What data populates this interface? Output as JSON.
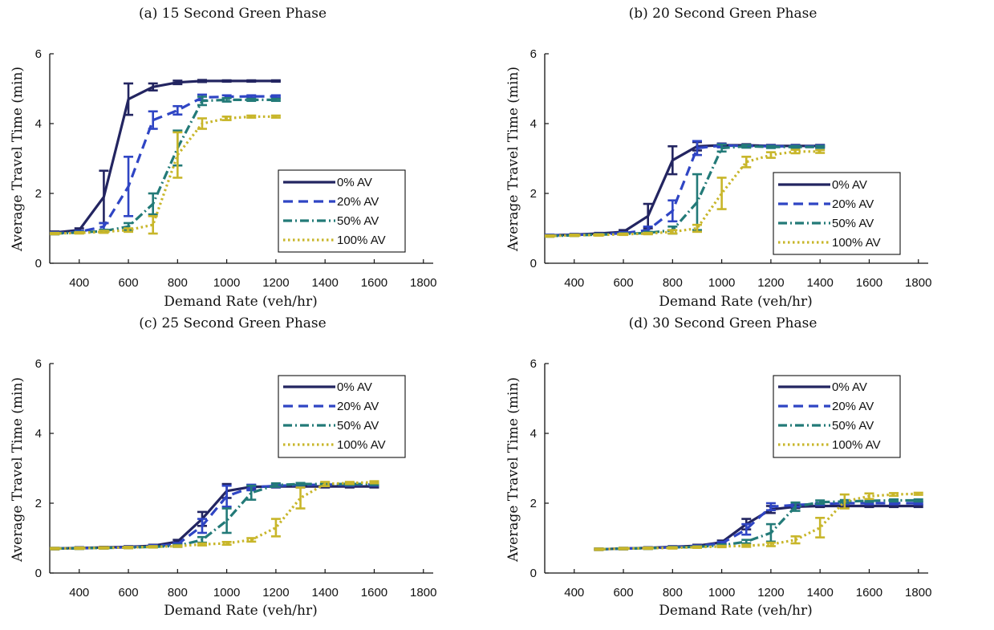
{
  "figure": {
    "colors": {
      "0% AV": "#232561",
      "20% AV": "#2f45c4",
      "50% AV": "#237a78",
      "100% AV": "#c8b62a"
    },
    "line_styles": {
      "0% AV": "solid",
      "20% AV": "dashed",
      "50% AV": "dash-dot",
      "100% AV": "dotted"
    }
  },
  "chart_data": [
    {
      "type": "line",
      "title": "(a) 15 Second Green Phase",
      "xlabel": "Demand Rate (veh/hr)",
      "ylabel": "Average Travel Time (min)",
      "xlim": [
        280,
        1840
      ],
      "ylim": [
        0,
        6
      ],
      "xticks": [
        400,
        600,
        800,
        1000,
        1200,
        1400,
        1600,
        1800
      ],
      "yticks": [
        0,
        2,
        4,
        6
      ],
      "grid": false,
      "legend_position": "center-right",
      "series": [
        {
          "name": "0% AV",
          "x": [
            300,
            400,
            500,
            600,
            700,
            800,
            900,
            1000,
            1100,
            1200
          ],
          "y": [
            0.88,
            0.95,
            1.9,
            4.7,
            5.05,
            5.18,
            5.22,
            5.22,
            5.22,
            5.22
          ],
          "err": [
            0.03,
            0.05,
            0.75,
            0.45,
            0.1,
            0.05,
            0.03,
            0.02,
            0.02,
            0.02
          ]
        },
        {
          "name": "20% AV",
          "x": [
            300,
            400,
            500,
            600,
            700,
            800,
            900,
            1000,
            1100,
            1200
          ],
          "y": [
            0.86,
            0.9,
            1.05,
            2.2,
            4.1,
            4.38,
            4.75,
            4.77,
            4.78,
            4.78
          ],
          "err": [
            0.03,
            0.03,
            0.1,
            0.85,
            0.25,
            0.12,
            0.08,
            0.04,
            0.03,
            0.03
          ]
        },
        {
          "name": "50% AV",
          "x": [
            300,
            400,
            500,
            600,
            700,
            800,
            900,
            1000,
            1100,
            1200
          ],
          "y": [
            0.85,
            0.88,
            0.92,
            1.05,
            1.7,
            3.3,
            4.65,
            4.68,
            4.68,
            4.68
          ],
          "err": [
            0.02,
            0.02,
            0.04,
            0.1,
            0.3,
            0.5,
            0.12,
            0.05,
            0.03,
            0.03
          ]
        },
        {
          "name": "100% AV",
          "x": [
            300,
            400,
            500,
            600,
            700,
            800,
            900,
            1000,
            1100,
            1200
          ],
          "y": [
            0.85,
            0.87,
            0.9,
            0.95,
            1.1,
            3.1,
            4.0,
            4.15,
            4.2,
            4.2
          ],
          "err": [
            0.02,
            0.02,
            0.03,
            0.05,
            0.25,
            0.65,
            0.15,
            0.05,
            0.03,
            0.03
          ]
        }
      ],
      "legend": [
        "0% AV",
        "20% AV",
        "50% AV",
        "100% AV"
      ]
    },
    {
      "type": "line",
      "title": "(b) 20 Second Green Phase",
      "xlabel": "Demand Rate (veh/hr)",
      "ylabel": "Average Travel Time (min)",
      "xlim": [
        280,
        1840
      ],
      "ylim": [
        0,
        6
      ],
      "xticks": [
        400,
        600,
        800,
        1000,
        1200,
        1400,
        1600,
        1800
      ],
      "yticks": [
        0,
        2,
        4,
        6
      ],
      "grid": false,
      "legend_position": "center-right",
      "series": [
        {
          "name": "0% AV",
          "x": [
            300,
            400,
            500,
            600,
            700,
            800,
            900,
            1000,
            1100,
            1200,
            1300,
            1400
          ],
          "y": [
            0.8,
            0.82,
            0.85,
            0.9,
            1.35,
            2.95,
            3.35,
            3.38,
            3.38,
            3.36,
            3.36,
            3.36
          ],
          "err": [
            0.02,
            0.02,
            0.02,
            0.05,
            0.35,
            0.4,
            0.12,
            0.05,
            0.03,
            0.03,
            0.03,
            0.03
          ]
        },
        {
          "name": "20% AV",
          "x": [
            300,
            400,
            500,
            600,
            700,
            800,
            900,
            1000,
            1100,
            1200,
            1300,
            1400
          ],
          "y": [
            0.8,
            0.81,
            0.83,
            0.86,
            0.95,
            1.5,
            3.3,
            3.37,
            3.36,
            3.35,
            3.35,
            3.35
          ],
          "err": [
            0.02,
            0.02,
            0.02,
            0.03,
            0.1,
            0.3,
            0.2,
            0.05,
            0.03,
            0.03,
            0.03,
            0.03
          ]
        },
        {
          "name": "50% AV",
          "x": [
            300,
            400,
            500,
            600,
            700,
            800,
            900,
            1000,
            1100,
            1200,
            1300,
            1400
          ],
          "y": [
            0.78,
            0.8,
            0.82,
            0.84,
            0.87,
            0.95,
            1.75,
            3.3,
            3.35,
            3.33,
            3.33,
            3.33
          ],
          "err": [
            0.02,
            0.02,
            0.02,
            0.02,
            0.03,
            0.1,
            0.8,
            0.1,
            0.04,
            0.03,
            0.03,
            0.03
          ]
        },
        {
          "name": "100% AV",
          "x": [
            300,
            400,
            500,
            600,
            700,
            800,
            900,
            1000,
            1100,
            1200,
            1300,
            1400
          ],
          "y": [
            0.78,
            0.8,
            0.81,
            0.83,
            0.85,
            0.9,
            1.0,
            2.0,
            2.9,
            3.1,
            3.2,
            3.2
          ],
          "err": [
            0.02,
            0.02,
            0.02,
            0.02,
            0.02,
            0.05,
            0.1,
            0.45,
            0.15,
            0.08,
            0.05,
            0.04
          ]
        }
      ],
      "legend": [
        "0% AV",
        "20% AV",
        "50% AV",
        "100% AV"
      ]
    },
    {
      "type": "line",
      "title": "(c) 25 Second Green Phase",
      "xlabel": "Demand Rate (veh/hr)",
      "ylabel": "Average Travel Time (min)",
      "xlim": [
        280,
        1840
      ],
      "ylim": [
        0,
        6
      ],
      "xticks": [
        400,
        600,
        800,
        1000,
        1200,
        1400,
        1600,
        1800
      ],
      "yticks": [
        0,
        2,
        4,
        6
      ],
      "grid": false,
      "legend_position": "top-right",
      "series": [
        {
          "name": "0% AV",
          "x": [
            300,
            400,
            500,
            600,
            700,
            800,
            900,
            1000,
            1100,
            1200,
            1300,
            1400,
            1500,
            1600
          ],
          "y": [
            0.7,
            0.72,
            0.73,
            0.75,
            0.78,
            0.9,
            1.55,
            2.35,
            2.47,
            2.48,
            2.48,
            2.48,
            2.48,
            2.48
          ],
          "err": [
            0.02,
            0.02,
            0.02,
            0.02,
            0.03,
            0.05,
            0.2,
            0.2,
            0.05,
            0.03,
            0.03,
            0.03,
            0.03,
            0.03
          ]
        },
        {
          "name": "20% AV",
          "x": [
            300,
            400,
            500,
            600,
            700,
            800,
            900,
            1000,
            1100,
            1200,
            1300,
            1400,
            1500,
            1600
          ],
          "y": [
            0.7,
            0.71,
            0.72,
            0.74,
            0.77,
            0.82,
            1.35,
            2.2,
            2.45,
            2.5,
            2.52,
            2.53,
            2.53,
            2.53
          ],
          "err": [
            0.02,
            0.02,
            0.02,
            0.02,
            0.03,
            0.04,
            0.2,
            0.3,
            0.08,
            0.04,
            0.03,
            0.03,
            0.03,
            0.03
          ]
        },
        {
          "name": "50% AV",
          "x": [
            300,
            400,
            500,
            600,
            700,
            800,
            900,
            1000,
            1100,
            1200,
            1300,
            1400,
            1500,
            1600
          ],
          "y": [
            0.7,
            0.71,
            0.72,
            0.73,
            0.75,
            0.78,
            0.95,
            1.5,
            2.3,
            2.52,
            2.55,
            2.55,
            2.55,
            2.55
          ],
          "err": [
            0.02,
            0.02,
            0.02,
            0.02,
            0.02,
            0.03,
            0.08,
            0.35,
            0.2,
            0.05,
            0.03,
            0.03,
            0.03,
            0.03
          ]
        },
        {
          "name": "100% AV",
          "x": [
            300,
            400,
            500,
            600,
            700,
            800,
            900,
            1000,
            1100,
            1200,
            1300,
            1400,
            1500,
            1600
          ],
          "y": [
            0.7,
            0.71,
            0.72,
            0.73,
            0.75,
            0.77,
            0.82,
            0.85,
            0.95,
            1.3,
            2.15,
            2.55,
            2.58,
            2.6
          ],
          "err": [
            0.02,
            0.02,
            0.02,
            0.02,
            0.02,
            0.02,
            0.03,
            0.04,
            0.05,
            0.25,
            0.3,
            0.06,
            0.03,
            0.03
          ]
        }
      ],
      "legend": [
        "0% AV",
        "20% AV",
        "50% AV",
        "100% AV"
      ]
    },
    {
      "type": "line",
      "title": "(d) 30 Second Green Phase",
      "xlabel": "Demand Rate (veh/hr)",
      "ylabel": "Average Travel Time (min)",
      "xlim": [
        280,
        1840
      ],
      "ylim": [
        0,
        6
      ],
      "xticks": [
        400,
        600,
        800,
        1000,
        1200,
        1400,
        1600,
        1800
      ],
      "yticks": [
        0,
        2,
        4,
        6
      ],
      "grid": false,
      "legend_position": "top-right",
      "series": [
        {
          "name": "0% AV",
          "x": [
            500,
            600,
            700,
            800,
            900,
            1000,
            1100,
            1200,
            1300,
            1400,
            1500,
            1600,
            1700,
            1800
          ],
          "y": [
            0.68,
            0.7,
            0.72,
            0.75,
            0.78,
            0.88,
            1.4,
            1.82,
            1.9,
            1.92,
            1.92,
            1.92,
            1.92,
            1.92
          ],
          "err": [
            0.02,
            0.02,
            0.02,
            0.02,
            0.03,
            0.05,
            0.15,
            0.1,
            0.04,
            0.03,
            0.03,
            0.03,
            0.03,
            0.03
          ]
        },
        {
          "name": "20% AV",
          "x": [
            500,
            600,
            700,
            800,
            900,
            1000,
            1100,
            1200,
            1300,
            1400,
            1500,
            1600,
            1700,
            1800
          ],
          "y": [
            0.68,
            0.7,
            0.71,
            0.74,
            0.77,
            0.85,
            1.25,
            1.9,
            1.95,
            1.98,
            2.0,
            2.0,
            2.0,
            2.0
          ],
          "err": [
            0.02,
            0.02,
            0.02,
            0.02,
            0.02,
            0.04,
            0.15,
            0.1,
            0.05,
            0.03,
            0.03,
            0.03,
            0.03,
            0.03
          ]
        },
        {
          "name": "50% AV",
          "x": [
            500,
            600,
            700,
            800,
            900,
            1000,
            1100,
            1200,
            1300,
            1400,
            1500,
            1600,
            1700,
            1800
          ],
          "y": [
            0.68,
            0.7,
            0.71,
            0.73,
            0.75,
            0.79,
            0.9,
            1.15,
            1.9,
            2.03,
            2.05,
            2.07,
            2.08,
            2.08
          ],
          "err": [
            0.02,
            0.02,
            0.02,
            0.02,
            0.02,
            0.03,
            0.05,
            0.25,
            0.12,
            0.05,
            0.04,
            0.03,
            0.03,
            0.03
          ]
        },
        {
          "name": "100% AV",
          "x": [
            500,
            600,
            700,
            800,
            900,
            1000,
            1100,
            1200,
            1300,
            1400,
            1500,
            1600,
            1700,
            1800
          ],
          "y": [
            0.68,
            0.7,
            0.71,
            0.72,
            0.74,
            0.76,
            0.78,
            0.82,
            0.95,
            1.3,
            2.05,
            2.2,
            2.25,
            2.27
          ],
          "err": [
            0.02,
            0.02,
            0.02,
            0.02,
            0.02,
            0.02,
            0.03,
            0.05,
            0.1,
            0.28,
            0.2,
            0.08,
            0.04,
            0.03
          ]
        }
      ],
      "legend": [
        "0% AV",
        "20% AV",
        "50% AV",
        "100% AV"
      ]
    }
  ]
}
